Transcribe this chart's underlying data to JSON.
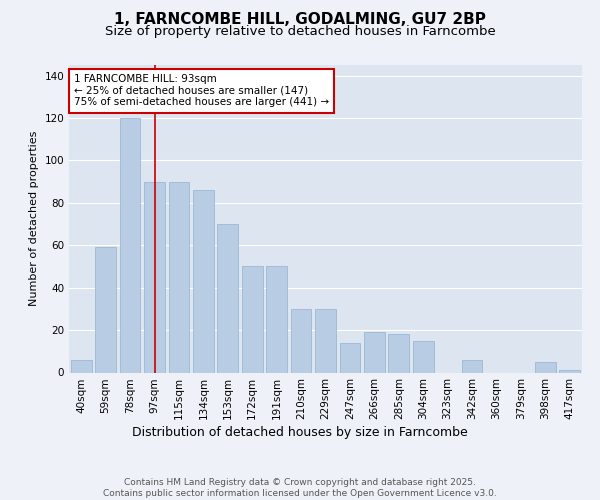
{
  "title": "1, FARNCOMBE HILL, GODALMING, GU7 2BP",
  "subtitle": "Size of property relative to detached houses in Farncombe",
  "xlabel": "Distribution of detached houses by size in Farncombe",
  "ylabel": "Number of detached properties",
  "categories": [
    "40sqm",
    "59sqm",
    "78sqm",
    "97sqm",
    "115sqm",
    "134sqm",
    "153sqm",
    "172sqm",
    "191sqm",
    "210sqm",
    "229sqm",
    "247sqm",
    "266sqm",
    "285sqm",
    "304sqm",
    "323sqm",
    "342sqm",
    "360sqm",
    "379sqm",
    "398sqm",
    "417sqm"
  ],
  "values": [
    6,
    59,
    120,
    90,
    90,
    86,
    70,
    50,
    50,
    30,
    30,
    14,
    19,
    18,
    15,
    0,
    6,
    0,
    0,
    5,
    1
  ],
  "bar_color": "#b8cce4",
  "bar_edge_color": "#9db8d4",
  "annotation_text": "1 FARNCOMBE HILL: 93sqm\n← 25% of detached houses are smaller (147)\n75% of semi-detached houses are larger (441) →",
  "annotation_box_color": "#ffffff",
  "annotation_box_edge_color": "#cc0000",
  "vline_color": "#cc0000",
  "vline_x_index": 3,
  "background_color": "#eef2f8",
  "plot_background_color": "#dde6f0",
  "grid_color": "#ffffff",
  "ylim": [
    0,
    145
  ],
  "yticks": [
    0,
    20,
    40,
    60,
    80,
    100,
    120,
    140
  ],
  "title_fontsize": 11,
  "subtitle_fontsize": 9.5,
  "xlabel_fontsize": 9,
  "ylabel_fontsize": 8,
  "tick_fontsize": 7.5,
  "annotation_fontsize": 7.5,
  "footer_fontsize": 6.5,
  "footer_text": "Contains HM Land Registry data © Crown copyright and database right 2025.\nContains public sector information licensed under the Open Government Licence v3.0."
}
